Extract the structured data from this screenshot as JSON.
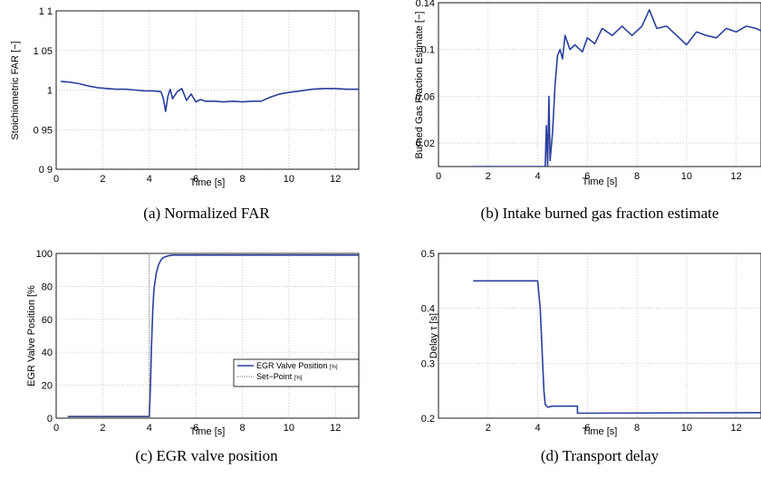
{
  "chart_data": [
    {
      "type": "line",
      "caption": "(a) Normalized FAR",
      "xlabel": "Time [s]",
      "ylabel": "Stoichiometric FAR [−]",
      "xlim": [
        0,
        13
      ],
      "ylim": [
        0.9,
        1.1
      ],
      "x_ticks": [
        0,
        2,
        4,
        6,
        8,
        10,
        12
      ],
      "y_ticks": [
        0.9,
        0.95,
        1,
        1.05,
        1.1
      ],
      "y_tick_labels": [
        "0 9",
        "0 95",
        "1",
        "1 05",
        "1 1"
      ],
      "grid": true,
      "series": [
        {
          "color": "#2a3f9c",
          "x": [
            0.2,
            0.6,
            1.0,
            1.4,
            1.8,
            2.2,
            2.6,
            3.0,
            3.4,
            3.8,
            4.2,
            4.5,
            4.6,
            4.7,
            4.8,
            4.9,
            5.0,
            5.2,
            5.4,
            5.6,
            5.8,
            6.0,
            6.2,
            6.4,
            6.8,
            7.2,
            7.6,
            8.0,
            8.4,
            8.8,
            9.2,
            9.6,
            10.0,
            10.5,
            11.0,
            11.5,
            12.0,
            12.5,
            13.0
          ],
          "y": [
            1.011,
            1.01,
            1.008,
            1.005,
            1.003,
            1.002,
            1.001,
            1.001,
            1.0,
            0.999,
            0.999,
            0.998,
            0.99,
            0.973,
            0.992,
            1.001,
            0.989,
            0.998,
            1.002,
            0.987,
            0.995,
            0.985,
            0.988,
            0.986,
            0.986,
            0.985,
            0.986,
            0.985,
            0.986,
            0.986,
            0.991,
            0.995,
            0.997,
            0.999,
            1.001,
            1.002,
            1.002,
            1.001,
            1.001
          ]
        }
      ]
    },
    {
      "type": "line",
      "caption": "(b) Intake burned gas fraction estimate",
      "xlabel": "Time [s]",
      "ylabel": "Burned Gas Fraction Estimate [−]",
      "xlim": [
        0,
        13
      ],
      "ylim": [
        0,
        0.14
      ],
      "x_ticks": [
        0,
        2,
        4,
        6,
        8,
        10,
        12
      ],
      "y_ticks": [
        0.02,
        0.06,
        0.1,
        0.14
      ],
      "y_tick_labels": [
        "0.02",
        "0.06",
        "0.1",
        "0.14"
      ],
      "grid": true,
      "series": [
        {
          "color": "#2a3f9c",
          "x": [
            1.4,
            4.2,
            4.3,
            4.35,
            4.4,
            4.45,
            4.5,
            4.6,
            4.7,
            4.8,
            4.9,
            5.0,
            5.1,
            5.3,
            5.5,
            5.8,
            6.0,
            6.3,
            6.6,
            7.0,
            7.4,
            7.8,
            8.2,
            8.5,
            8.8,
            9.2,
            9.6,
            10.0,
            10.4,
            10.8,
            11.2,
            11.6,
            12.0,
            12.4,
            12.8,
            13.0
          ],
          "y": [
            0,
            0,
            0.0,
            0.035,
            0.0,
            0.06,
            0.005,
            0.03,
            0.07,
            0.095,
            0.1,
            0.092,
            0.112,
            0.1,
            0.104,
            0.098,
            0.11,
            0.105,
            0.118,
            0.112,
            0.12,
            0.112,
            0.12,
            0.134,
            0.118,
            0.12,
            0.112,
            0.104,
            0.115,
            0.112,
            0.11,
            0.118,
            0.115,
            0.12,
            0.118,
            0.116
          ]
        }
      ]
    },
    {
      "type": "line",
      "caption": "(c) EGR valve position",
      "xlabel": "Time [s]",
      "ylabel": "EGR Valve Position [%",
      "xlim": [
        0,
        13
      ],
      "ylim": [
        0,
        100
      ],
      "x_ticks": [
        0,
        2,
        4,
        6,
        8,
        10,
        12
      ],
      "y_ticks": [
        0,
        20,
        40,
        60,
        80,
        100
      ],
      "y_tick_labels": [
        "0",
        "20",
        "40",
        "60",
        "80",
        "100"
      ],
      "grid": true,
      "legend": "center-right",
      "series": [
        {
          "name": "EGR Valve Position",
          "unit": "[%]",
          "style": "solid",
          "color": "#2a3f9c",
          "x": [
            0.5,
            4.0,
            4.05,
            4.1,
            4.15,
            4.2,
            4.3,
            4.4,
            4.5,
            4.6,
            4.8,
            5.0,
            13.0
          ],
          "y": [
            1,
            1,
            20,
            45,
            65,
            78,
            88,
            93,
            96,
            97.5,
            98.5,
            99,
            99
          ]
        },
        {
          "name": "Set−Point",
          "unit": "[%]",
          "style": "dotted",
          "color": "#555555",
          "x": [
            0.5,
            4.0,
            4.0,
            13.0
          ],
          "y": [
            1,
            1,
            100,
            100
          ]
        }
      ]
    },
    {
      "type": "line",
      "caption": "(d) Transport delay",
      "xlabel": "Time [s]",
      "ylabel": "Delay τ [s]",
      "xlim": [
        0,
        13
      ],
      "ylim": [
        0.2,
        0.5
      ],
      "x_ticks": [
        2,
        4,
        6,
        8,
        10,
        12
      ],
      "y_ticks": [
        0.2,
        0.3,
        0.4,
        0.5
      ],
      "y_tick_labels": [
        "0.2",
        "0.3",
        "0.4",
        "0.5"
      ],
      "grid": true,
      "series": [
        {
          "color": "#2a3f9c",
          "x": [
            1.4,
            4.0,
            4.1,
            4.2,
            4.25,
            4.3,
            4.4,
            4.6,
            5.0,
            5.6,
            5.6,
            13.0
          ],
          "y": [
            0.45,
            0.45,
            0.4,
            0.3,
            0.25,
            0.225,
            0.22,
            0.222,
            0.222,
            0.222,
            0.209,
            0.21
          ]
        }
      ]
    }
  ]
}
